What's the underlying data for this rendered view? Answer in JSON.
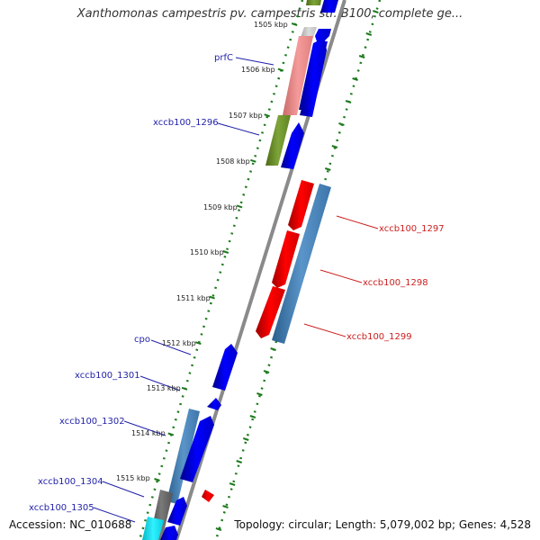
{
  "title": "Xanthomonas campestris pv. campestris str. B100, complete ge...",
  "footer": {
    "accession": "Accession: NC_010688",
    "summary": "Topology: circular; Length: 5,079,002 bp; Genes: 4,528"
  },
  "colors": {
    "backbone": "#8a8a8a",
    "forward_label": "#1f1fa8",
    "reverse_label": "#cc1f1f",
    "grid": "#1d7a1d"
  },
  "ticks": [
    "1505 kbp",
    "1506 kbp",
    "1507 kbp",
    "1508 kbp",
    "1509 kbp",
    "1510 kbp",
    "1511 kbp",
    "1512 kbp",
    "1513 kbp",
    "1514 kbp",
    "1515 kbp"
  ],
  "gene_labels": {
    "prfC": "prfC",
    "xccb100_1296": "xccb100_1296",
    "xccb100_1297": "xccb100_1297",
    "xccb100_1298": "xccb100_1298",
    "xccb100_1299": "xccb100_1299",
    "cpo": "cpo",
    "xccb100_1301": "xccb100_1301",
    "xccb100_1302": "xccb100_1302",
    "xccb100_1304": "xccb100_1304",
    "xccb100_1305": "xccb100_1305"
  }
}
